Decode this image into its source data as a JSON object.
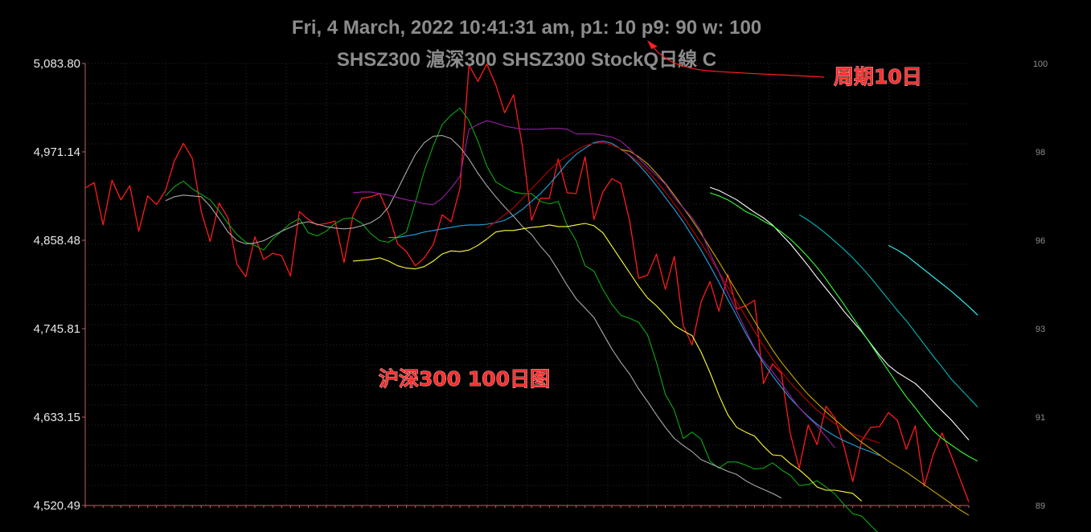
{
  "chart_data": {
    "type": "line",
    "title": "Fri, 4 March, 2022 10:41:31 am, p1: 10 p9: 90 w: 100",
    "subtitle": "SHSZ300 滬深300 SHSZ300 StockQ日線 C",
    "annotations": [
      {
        "text": "周期10日",
        "arrow": true
      },
      {
        "text": "沪深300  100日图",
        "arrow": false
      }
    ],
    "n_days": 100,
    "ylim_left": [
      4520.49,
      5083.8
    ],
    "yticks_left": [
      "5,083.80",
      "4,971.14",
      "4,858.48",
      "4,745.81",
      "4,633.15",
      "4,520.49"
    ],
    "ylim_right": [
      89,
      100
    ],
    "yticks_right": [
      "100",
      "98",
      "96",
      "93",
      "91",
      "89"
    ],
    "grid": true,
    "background": "#000000",
    "series": [
      {
        "color": "#ff1a1a",
        "start": 0,
        "values": [
          4925,
          4932,
          4878,
          4935,
          4910,
          4928,
          4870,
          4915,
          4904,
          4922,
          4960,
          4982,
          4963,
          4895,
          4857,
          4906,
          4887,
          4828,
          4812,
          4863,
          4834,
          4842,
          4839,
          4813,
          4895,
          4885,
          4878,
          4880,
          4883,
          4830,
          4890,
          4912,
          4914,
          4918,
          4892,
          4854,
          4844,
          4826,
          4836,
          4853,
          4891,
          4882,
          4925,
          5082,
          5061,
          5083,
          5057,
          5021,
          5044,
          4977,
          4884,
          4912,
          4912,
          4962,
          4919,
          4918,
          4965,
          4885,
          4920,
          4937,
          4931,
          4883,
          4810,
          4814,
          4841,
          4796,
          4838,
          4750,
          4725,
          4780,
          4806,
          4768,
          4815,
          4771,
          4775,
          4782,
          4676,
          4701,
          4689,
          4612,
          4568,
          4623,
          4598,
          4647,
          4632,
          4596,
          4551,
          4603,
          4620,
          4621,
          4639,
          4629,
          4592,
          4622,
          4545,
          4585,
          4613,
          4585,
          4555,
          4525
        ]
      },
      {
        "color": "#0fa80f",
        "start": 9,
        "values": [
          4915,
          4927,
          4934,
          4924,
          4917,
          4910,
          4896,
          4880,
          4866,
          4856,
          4852,
          4846,
          4860,
          4870,
          4880,
          4886,
          4868,
          4864,
          4870,
          4880,
          4886,
          4887,
          4880,
          4867,
          4858,
          4856,
          4863,
          4869,
          4907,
          4947,
          4979,
          5006,
          5018,
          5027,
          5011,
          4985,
          4953,
          4933,
          4926,
          4920,
          4918,
          4918,
          4908,
          4905,
          4908,
          4877,
          4858,
          4826,
          4819,
          4796,
          4777,
          4763,
          4759,
          4754,
          4738,
          4703,
          4662,
          4642,
          4606,
          4614,
          4605,
          4577,
          4568,
          4576,
          4576,
          4572,
          4567,
          4568,
          4575,
          4566,
          4559,
          4546,
          4547,
          4552,
          4544,
          4535,
          4522,
          4510,
          4507,
          4495,
          4484
        ]
      },
      {
        "color": "#aaaaaa",
        "start": 9,
        "values": [
          4909,
          4914,
          4916,
          4915,
          4914,
          4902,
          4886,
          4869,
          4858,
          4854,
          4855,
          4858,
          4864,
          4870,
          4875,
          4880,
          4882,
          4879,
          4876,
          4874,
          4873,
          4874,
          4877,
          4881,
          4888,
          4901,
          4923,
          4946,
          4968,
          4983,
          4991,
          4992,
          4988,
          4977,
          4962,
          4944,
          4928,
          4914,
          4901,
          4889,
          4876,
          4866,
          4851,
          4838,
          4820,
          4801,
          4784,
          4772,
          4760,
          4740,
          4720,
          4703,
          4688,
          4669,
          4653,
          4636,
          4620,
          4606,
          4597,
          4589,
          4579,
          4574,
          4569,
          4564,
          4560,
          4552,
          4546,
          4541,
          4536,
          4530
        ]
      },
      {
        "color": "#1fa3e0",
        "start": 34,
        "values": [
          4862,
          4862,
          4864,
          4866,
          4869,
          4871,
          4873,
          4875,
          4877,
          4878,
          4878,
          4879,
          4881,
          4884,
          4890,
          4898,
          4908,
          4918,
          4930,
          4943,
          4957,
          4968,
          4976,
          4983,
          4985,
          4982,
          4975,
          4966,
          4955,
          4942,
          4928,
          4913,
          4898,
          4882,
          4864,
          4846,
          4826,
          4805,
          4783,
          4762,
          4740,
          4720,
          4702,
          4686,
          4671,
          4657,
          4645,
          4634,
          4624,
          4616,
          4609,
          4603,
          4598,
          4593,
          4589,
          4584
        ]
      },
      {
        "color": "#c00000",
        "start": 45,
        "values": [
          4874,
          4882,
          4891,
          4900,
          4912,
          4924,
          4936,
          4948,
          4958,
          4966,
          4973,
          4979,
          4982,
          4983,
          4980,
          4975,
          4967,
          4958,
          4947,
          4934,
          4920,
          4905,
          4889,
          4872,
          4855,
          4837,
          4818,
          4799,
          4780,
          4761,
          4742,
          4724,
          4707,
          4691,
          4677,
          4665,
          4653,
          4642,
          4633,
          4625,
          4618,
          4612,
          4608,
          4604,
          4600
        ]
      },
      {
        "color": "#c8a800",
        "start": 60,
        "values": [
          4974,
          4972,
          4965,
          4956,
          4944,
          4931,
          4916,
          4900,
          4884,
          4867,
          4849,
          4831,
          4812,
          4793,
          4774,
          4755,
          4737,
          4719,
          4703,
          4689,
          4675,
          4662,
          4651,
          4640,
          4630,
          4620,
          4610,
          4601,
          4593,
          4585,
          4577,
          4570,
          4563,
          4555,
          4547,
          4539,
          4531,
          4523,
          4515,
          4508
        ]
      },
      {
        "color": "#ffff33",
        "start": 30,
        "values": [
          4832,
          4833,
          4834,
          4836,
          4832,
          4826,
          4823,
          4822,
          4825,
          4832,
          4841,
          4845,
          4844,
          4846,
          4852,
          4860,
          4869,
          4871,
          4871,
          4873,
          4875,
          4876,
          4878,
          4876,
          4876,
          4878,
          4880,
          4877,
          4868,
          4851,
          4834,
          4817,
          4800,
          4785,
          4775,
          4763,
          4750,
          4743,
          4737,
          4716,
          4690,
          4661,
          4636,
          4620,
          4614,
          4609,
          4596,
          4585,
          4584,
          4574,
          4566,
          4556,
          4544,
          4540,
          4540,
          4538,
          4536,
          4526
        ]
      },
      {
        "color": "#ffffff",
        "start": 70,
        "values": [
          4926,
          4922,
          4916,
          4910,
          4902,
          4894,
          4887,
          4878,
          4866,
          4854,
          4840,
          4826,
          4811,
          4797,
          4783,
          4768,
          4755,
          4742,
          4727,
          4712,
          4699,
          4690,
          4683,
          4676,
          4665,
          4653,
          4641,
          4630,
          4617,
          4604
        ]
      },
      {
        "color": "#9b1fa3",
        "start": 30,
        "values": [
          4919,
          4920,
          4920,
          4918,
          4916,
          4913,
          4910,
          4908,
          4905,
          4904,
          4912,
          4925,
          4940,
          5000,
          5006,
          5011,
          5008,
          5004,
          5002,
          5000,
          5000,
          5000,
          5001,
          5001,
          5000,
          4994,
          4994,
          4994,
          4992,
          4990,
          4985,
          4975,
          4963,
          4952,
          4941,
          4930,
          4913,
          4900,
          4887,
          4870,
          4842,
          4818,
          4791,
          4768,
          4744,
          4721,
          4705,
          4691,
          4676,
          4660,
          4645,
          4633,
          4622,
          4608,
          4594
        ]
      },
      {
        "color": "#33ff33",
        "start": 70,
        "values": [
          4919,
          4915,
          4910,
          4903,
          4895,
          4890,
          4883,
          4877,
          4869,
          4860,
          4849,
          4837,
          4824,
          4809,
          4793,
          4777,
          4760,
          4743,
          4726,
          4709,
          4692,
          4675,
          4659,
          4645,
          4630,
          4616,
          4606,
          4598,
          4590,
          4583,
          4577
        ]
      },
      {
        "color": "#00b8b8",
        "start": 80,
        "values": [
          4891,
          4884,
          4876,
          4867,
          4857,
          4847,
          4836,
          4824,
          4811,
          4797,
          4783,
          4769,
          4756,
          4741,
          4726,
          4711,
          4697,
          4682,
          4670,
          4658,
          4646
        ]
      },
      {
        "color": "#33ffff",
        "start": 90,
        "values": [
          4852,
          4846,
          4839,
          4830,
          4821,
          4812,
          4803,
          4794,
          4784,
          4774,
          4763
        ]
      }
    ]
  }
}
